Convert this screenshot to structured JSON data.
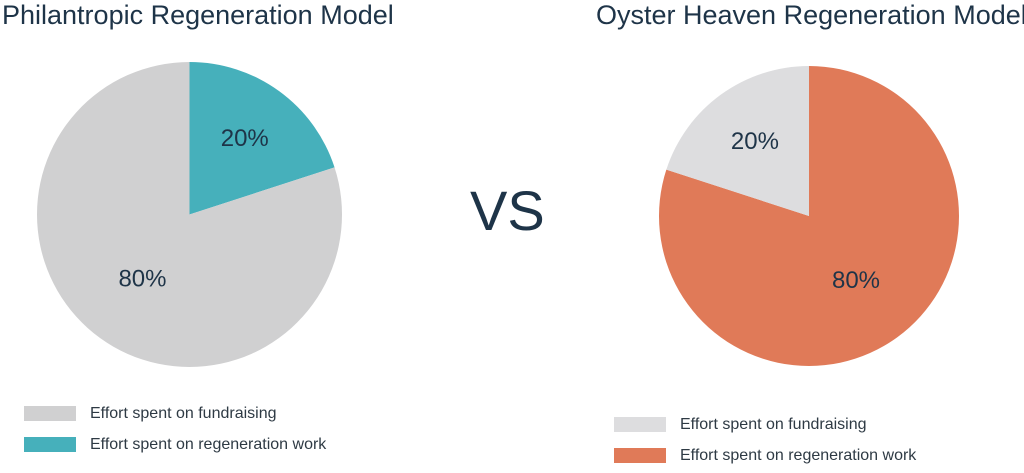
{
  "vs_text": "VS",
  "colors": {
    "fundraising_left": "#d0d0d1",
    "fundraising_right": "#dddddf",
    "regeneration_left": "#46b0bb",
    "regeneration_right": "#e07a58",
    "label_text": "#1e3448"
  },
  "chart_data": [
    {
      "type": "pie",
      "title": "Philantropic Regeneration Model",
      "slices": [
        {
          "label": "Effort spent on regeneration work",
          "value": 20,
          "display": "20%",
          "color": "#46b0bb"
        },
        {
          "label": "Effort spent on fundraising",
          "value": 80,
          "display": "80%",
          "color": "#d0d0d1"
        }
      ],
      "legend": [
        {
          "label": "Effort spent on fundraising",
          "color": "#d0d0d1"
        },
        {
          "label": "Effort spent on regeneration work",
          "color": "#46b0bb"
        }
      ],
      "legend_placement": "bottom"
    },
    {
      "type": "pie",
      "title": "Oyster Heaven Regeneration Model",
      "slices": [
        {
          "label": "Effort spent on regeneration work",
          "value": 80,
          "display": "80%",
          "color": "#e07a58"
        },
        {
          "label": "Effort spent on fundraising",
          "value": 20,
          "display": "20%",
          "color": "#dddddf"
        }
      ],
      "legend": [
        {
          "label": "Effort spent on fundraising",
          "color": "#dddddf"
        },
        {
          "label": "Effort spent on regeneration work",
          "color": "#e07a58"
        }
      ],
      "legend_placement": "bottom"
    }
  ]
}
